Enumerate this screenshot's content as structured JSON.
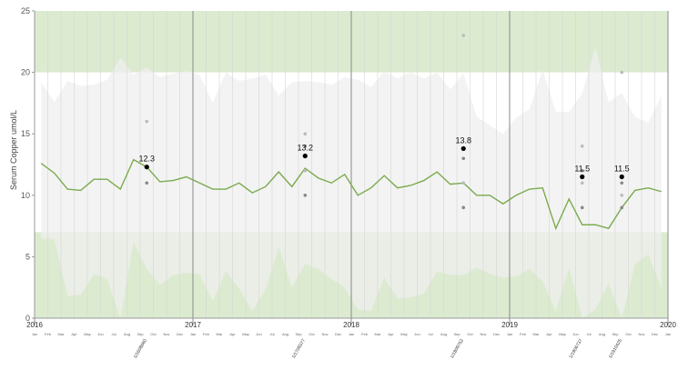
{
  "chart_data": {
    "type": "line",
    "ylabel": "Serum Copper umol/L",
    "ylim": [
      0,
      25
    ],
    "yticks": [
      0,
      5,
      10,
      15,
      20,
      25
    ],
    "xlim": [
      "2016-01",
      "2020-01"
    ],
    "year_labels": [
      "2016",
      "2017",
      "2018",
      "2019",
      "2020"
    ],
    "month_labels": [
      "Jan",
      "Feb",
      "Mar",
      "Apr",
      "May",
      "Jun",
      "Jul",
      "Aug",
      "Sep",
      "Oct",
      "Nov",
      "Dec"
    ],
    "reference_range": {
      "low": 7,
      "high": 20
    },
    "grid": true,
    "colors": {
      "band": "#dcebd0",
      "range_shading": "#efefef",
      "trend_line": "#7aab4e",
      "point_current": "#000000",
      "point_previous": "#888888",
      "point_faded": "#bbbbbb"
    },
    "trend": {
      "x": [
        "2016-01",
        "2016-02",
        "2016-03",
        "2016-04",
        "2016-05",
        "2016-06",
        "2016-07",
        "2016-08",
        "2016-09",
        "2016-10",
        "2016-11",
        "2016-12",
        "2017-01",
        "2017-02",
        "2017-03",
        "2017-04",
        "2017-05",
        "2017-06",
        "2017-07",
        "2017-08",
        "2017-09",
        "2017-10",
        "2017-11",
        "2017-12",
        "2018-01",
        "2018-02",
        "2018-03",
        "2018-04",
        "2018-05",
        "2018-06",
        "2018-07",
        "2018-08",
        "2018-09",
        "2018-10",
        "2018-11",
        "2018-12",
        "2019-01",
        "2019-02",
        "2019-03",
        "2019-04",
        "2019-05",
        "2019-06",
        "2019-07",
        "2019-08",
        "2019-09",
        "2019-10",
        "2019-11",
        "2019-12"
      ],
      "y": [
        12.6,
        11.8,
        10.5,
        10.4,
        11.3,
        11.3,
        10.5,
        12.9,
        12.3,
        11.1,
        11.2,
        11.5,
        11.0,
        10.5,
        10.5,
        11.0,
        10.2,
        10.7,
        11.9,
        10.7,
        12.2,
        11.4,
        11.0,
        11.7,
        10.0,
        10.6,
        11.6,
        10.6,
        10.8,
        11.2,
        11.9,
        10.9,
        11.0,
        10.0,
        10.0,
        9.3,
        10.0,
        10.5,
        10.6,
        7.3,
        9.7,
        7.6,
        7.6,
        7.3,
        9.0,
        10.4,
        10.6,
        10.3
      ]
    },
    "measurements": [
      {
        "x": "2016-09",
        "value": 12.3,
        "label": "12.3",
        "sample_id": "1/1608660",
        "history": [
          16,
          11
        ]
      },
      {
        "x": "2017-09",
        "value": 13.2,
        "label": "13.2",
        "sample_id": "1/1709377",
        "history": [
          15,
          14,
          12,
          10
        ]
      },
      {
        "x": "2018-09",
        "value": 13.8,
        "label": "13.8",
        "sample_id": "1/1809752",
        "history": [
          23,
          13,
          11,
          9
        ]
      },
      {
        "x": "2019-06",
        "value": 11.5,
        "label": "11.5",
        "sample_id": "1/1906737",
        "history": [
          14,
          12,
          11,
          9
        ]
      },
      {
        "x": "2019-09",
        "value": 11.5,
        "label": "11.5",
        "sample_id": "1/1910425",
        "history": [
          20,
          11,
          10,
          9
        ]
      }
    ],
    "upper_envelope": {
      "x": [
        "2016-01",
        "2016-02",
        "2016-03",
        "2016-04",
        "2016-05",
        "2016-06",
        "2016-07",
        "2016-08",
        "2016-09",
        "2016-10",
        "2016-11",
        "2016-12",
        "2017-01",
        "2017-02",
        "2017-03",
        "2017-04",
        "2017-05",
        "2017-06",
        "2017-07",
        "2017-08",
        "2017-09",
        "2017-10",
        "2017-11",
        "2017-12",
        "2018-01",
        "2018-02",
        "2018-03",
        "2018-04",
        "2018-05",
        "2018-06",
        "2018-07",
        "2018-08",
        "2018-09",
        "2018-10",
        "2018-11",
        "2018-12",
        "2019-01",
        "2019-02",
        "2019-03",
        "2019-04",
        "2019-05",
        "2019-06",
        "2019-07",
        "2019-08",
        "2019-09",
        "2019-10",
        "2019-11",
        "2019-12"
      ],
      "y": [
        19.2,
        17.6,
        19.3,
        18.9,
        19.0,
        19.4,
        21.2,
        19.8,
        20.4,
        19.6,
        19.9,
        20.1,
        19.8,
        17.5,
        20.0,
        19.3,
        19.5,
        19.8,
        18.1,
        19.2,
        19.3,
        19.2,
        19.0,
        19.6,
        19.4,
        18.8,
        20.1,
        19.5,
        20.0,
        19.5,
        20.0,
        18.6,
        19.9,
        16.4,
        15.7,
        15.0,
        16.3,
        17.0,
        20.2,
        16.8,
        16.8,
        18.3,
        22.0,
        17.6,
        18.3,
        16.4,
        15.9,
        18.1
      ]
    },
    "lower_envelope": {
      "x": [
        "2016-01",
        "2016-02",
        "2016-03",
        "2016-04",
        "2016-05",
        "2016-06",
        "2016-07",
        "2016-08",
        "2016-09",
        "2016-10",
        "2016-11",
        "2016-12",
        "2017-01",
        "2017-02",
        "2017-03",
        "2017-04",
        "2017-05",
        "2017-06",
        "2017-07",
        "2017-08",
        "2017-09",
        "2017-10",
        "2017-11",
        "2017-12",
        "2018-01",
        "2018-02",
        "2018-03",
        "2018-04",
        "2018-05",
        "2018-06",
        "2018-07",
        "2018-08",
        "2018-09",
        "2018-10",
        "2018-11",
        "2018-12",
        "2019-01",
        "2019-02",
        "2019-03",
        "2019-04",
        "2019-05",
        "2019-06",
        "2019-07",
        "2019-08",
        "2019-09",
        "2019-10",
        "2019-11",
        "2019-12"
      ],
      "y": [
        6.5,
        6.4,
        1.8,
        1.9,
        3.6,
        3.2,
        0.0,
        6.2,
        4.0,
        2.7,
        3.5,
        3.7,
        3.6,
        1.4,
        3.8,
        2.4,
        0.6,
        2.3,
        5.8,
        2.5,
        4.4,
        4.0,
        3.2,
        2.5,
        0.7,
        0.6,
        3.3,
        1.6,
        1.7,
        2.0,
        3.8,
        3.5,
        3.5,
        4.1,
        3.6,
        3.3,
        3.4,
        4.0,
        3.0,
        0.6,
        4.1,
        0.0,
        0.7,
        2.8,
        0.0,
        4.4,
        5.2,
        2.5
      ]
    }
  }
}
